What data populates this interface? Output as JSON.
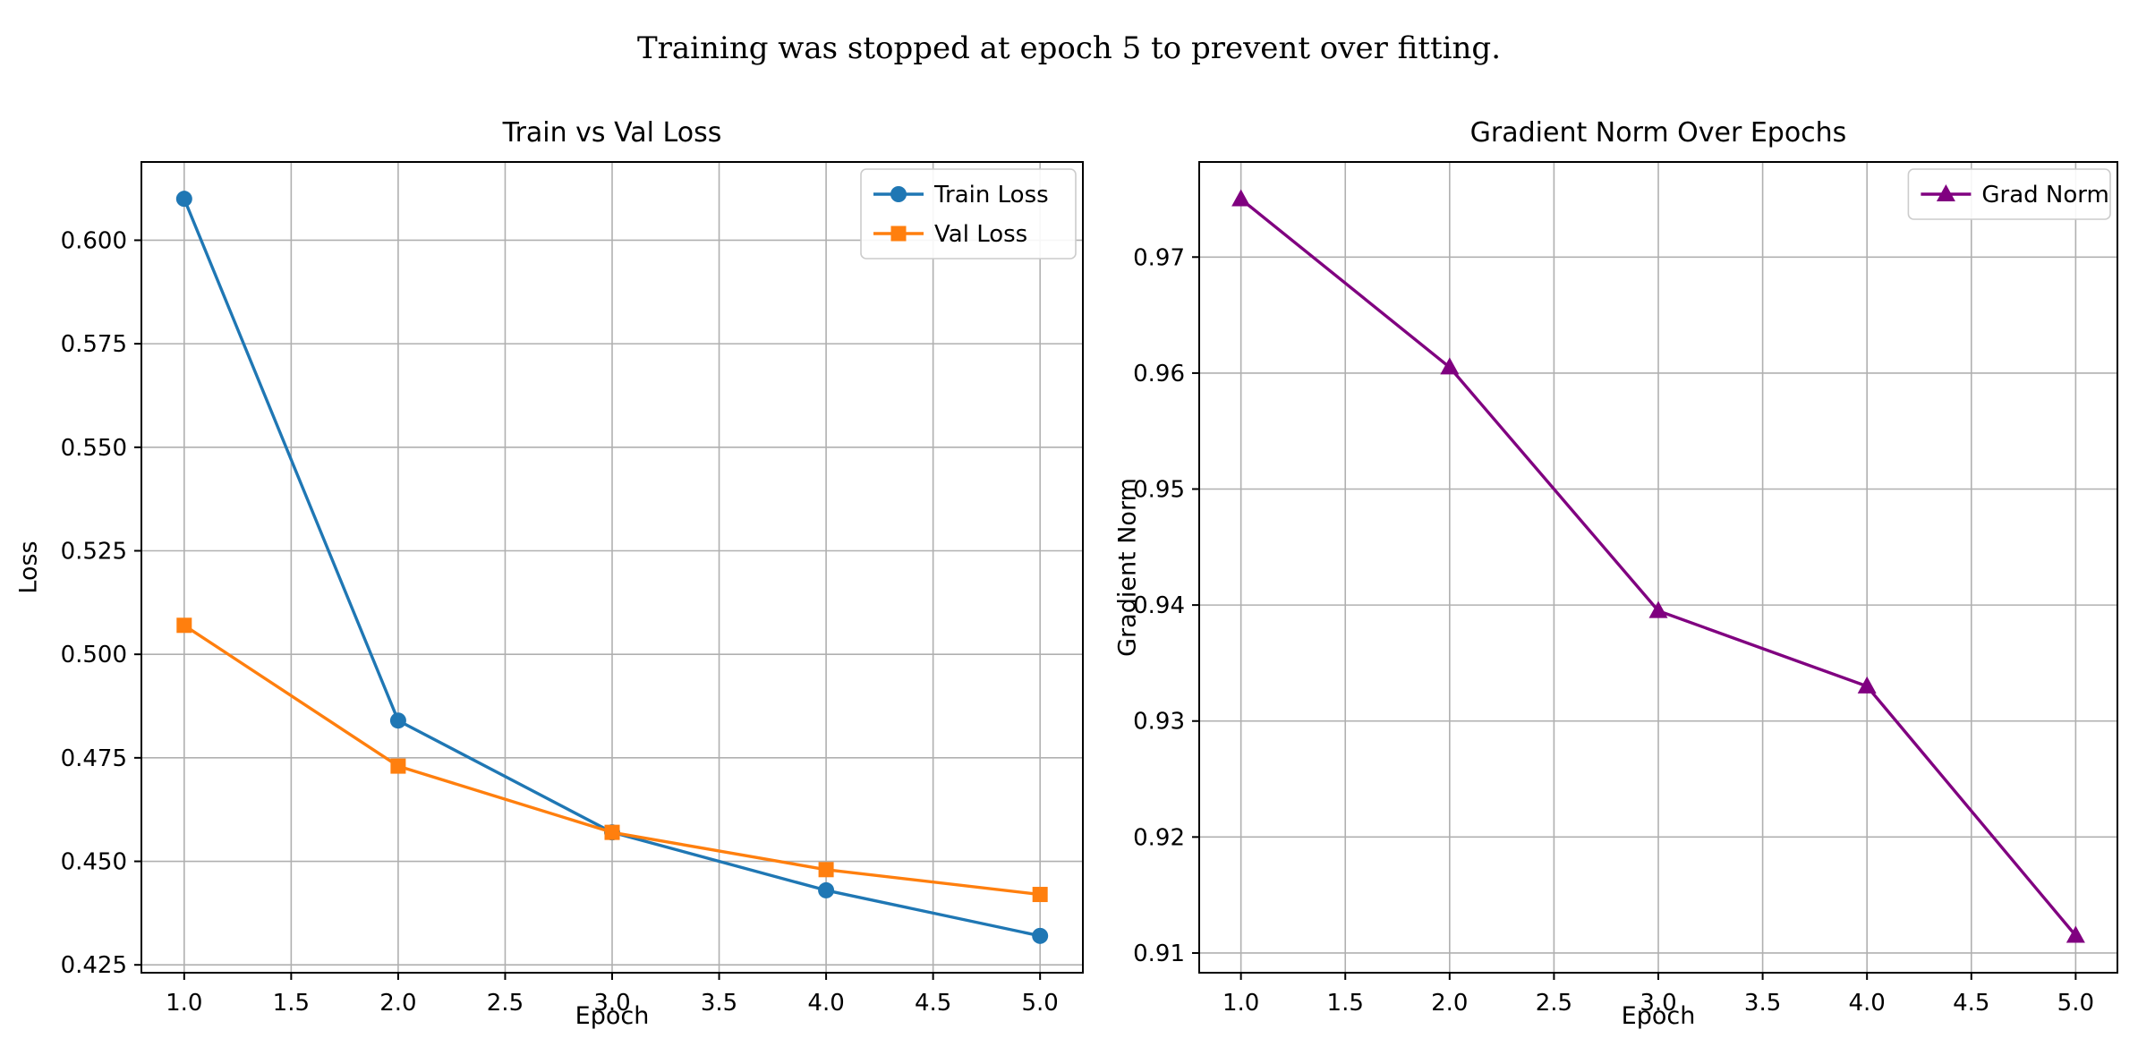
{
  "suptitle": "Training was stopped at epoch 5 to prevent over fitting.",
  "chart_data": [
    {
      "type": "line",
      "title": "Train vs Val Loss",
      "xlabel": "Epoch",
      "ylabel": "Loss",
      "x": [
        1,
        2,
        3,
        4,
        5
      ],
      "xlim": [
        0.8,
        5.2
      ],
      "ylim": [
        0.4231,
        0.6189
      ],
      "xticks": [
        1.0,
        1.5,
        2.0,
        2.5,
        3.0,
        3.5,
        4.0,
        4.5,
        5.0
      ],
      "xtick_labels": [
        "1.0",
        "1.5",
        "2.0",
        "2.5",
        "3.0",
        "3.5",
        "4.0",
        "4.5",
        "5.0"
      ],
      "yticks": [
        0.425,
        0.45,
        0.475,
        0.5,
        0.525,
        0.55,
        0.575,
        0.6
      ],
      "ytick_labels": [
        "0.425",
        "0.450",
        "0.475",
        "0.500",
        "0.525",
        "0.550",
        "0.575",
        "0.600"
      ],
      "grid": true,
      "legend_position": "upper right",
      "series": [
        {
          "name": "Train Loss",
          "color": "#1f77b4",
          "marker": "o",
          "values": [
            0.61,
            0.484,
            0.457,
            0.443,
            0.432
          ]
        },
        {
          "name": "Val Loss",
          "color": "#ff7f0e",
          "marker": "s",
          "values": [
            0.507,
            0.473,
            0.457,
            0.448,
            0.442
          ]
        }
      ]
    },
    {
      "type": "line",
      "title": "Gradient Norm Over Epochs",
      "xlabel": "Epoch",
      "ylabel": "Gradient Norm",
      "x": [
        1,
        2,
        3,
        4,
        5
      ],
      "xlim": [
        0.8,
        5.2
      ],
      "ylim": [
        0.9083,
        0.9782
      ],
      "xticks": [
        1.0,
        1.5,
        2.0,
        2.5,
        3.0,
        3.5,
        4.0,
        4.5,
        5.0
      ],
      "xtick_labels": [
        "1.0",
        "1.5",
        "2.0",
        "2.5",
        "3.0",
        "3.5",
        "4.0",
        "4.5",
        "5.0"
      ],
      "yticks": [
        0.91,
        0.92,
        0.93,
        0.94,
        0.95,
        0.96,
        0.97
      ],
      "ytick_labels": [
        "0.91",
        "0.92",
        "0.93",
        "0.94",
        "0.95",
        "0.96",
        "0.97"
      ],
      "grid": true,
      "legend_position": "upper right",
      "series": [
        {
          "name": "Grad Norm",
          "color": "#800080",
          "marker": "^",
          "values": [
            0.975,
            0.9605,
            0.9395,
            0.933,
            0.9115
          ]
        }
      ]
    }
  ],
  "style": {
    "grid_color": "#b0b0b0",
    "spine_color": "#000000",
    "text_color": "#000000",
    "legend_border_color": "#cccccc",
    "background": "#ffffff"
  }
}
